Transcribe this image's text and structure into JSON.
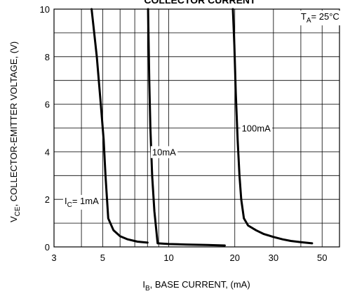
{
  "chart_data": {
    "type": "line",
    "title": "COLLECTOR CURRENT",
    "xlabel": {
      "main": "I",
      "sub": "B",
      "rest": ", BASE CURRENT, (mA)"
    },
    "ylabel": {
      "main": "V",
      "sub": "CE",
      "rest": ", COLLECTOR-EMITTER VOLTAGE, (V)"
    },
    "x_scale": "log",
    "xlim": [
      3,
      60
    ],
    "ylim": [
      0,
      10
    ],
    "x_ticks": [
      3,
      5,
      10,
      20,
      30,
      50
    ],
    "y_ticks": [
      0,
      2,
      4,
      6,
      8,
      10
    ],
    "grid": true,
    "annotations": [
      {
        "text_main": "T",
        "text_sub": "A",
        "text_rest": "= 25°C",
        "x": 40,
        "y": 9.7
      },
      {
        "text_main": "I",
        "text_sub": "C",
        "text_rest": "= 1mA",
        "x": 3.35,
        "y": 1.95
      },
      {
        "text_main": "10mA",
        "text_sub": "",
        "text_rest": "",
        "x": 8.4,
        "y": 4.0
      },
      {
        "text_main": "100mA",
        "text_sub": "",
        "text_rest": "",
        "x": 21.5,
        "y": 5.0
      }
    ],
    "series": [
      {
        "name": "1mA",
        "x": [
          4.45,
          4.7,
          4.9,
          5.05,
          5.15,
          5.3,
          5.6,
          6.0,
          6.5,
          7.2,
          8.0
        ],
        "y": [
          10.0,
          8.0,
          6.0,
          4.5,
          3.0,
          1.2,
          0.7,
          0.45,
          0.32,
          0.22,
          0.18
        ]
      },
      {
        "name": "10mA",
        "x": [
          8.05,
          8.15,
          8.25,
          8.4,
          8.6,
          8.9,
          10.0,
          12.0,
          15.0,
          18.0
        ],
        "y": [
          10.0,
          7.0,
          5.0,
          3.0,
          1.5,
          0.15,
          0.12,
          0.1,
          0.08,
          0.06
        ]
      },
      {
        "name": "100mA",
        "x": [
          19.6,
          19.9,
          20.2,
          20.6,
          21.0,
          21.4,
          22.0,
          23.0,
          25.0,
          27.0,
          30.0,
          33.0,
          36.0,
          40.0,
          45.0
        ],
        "y": [
          10.0,
          8.5,
          6.5,
          4.5,
          3.0,
          2.0,
          1.2,
          0.9,
          0.7,
          0.55,
          0.42,
          0.32,
          0.25,
          0.2,
          0.15
        ]
      }
    ]
  }
}
